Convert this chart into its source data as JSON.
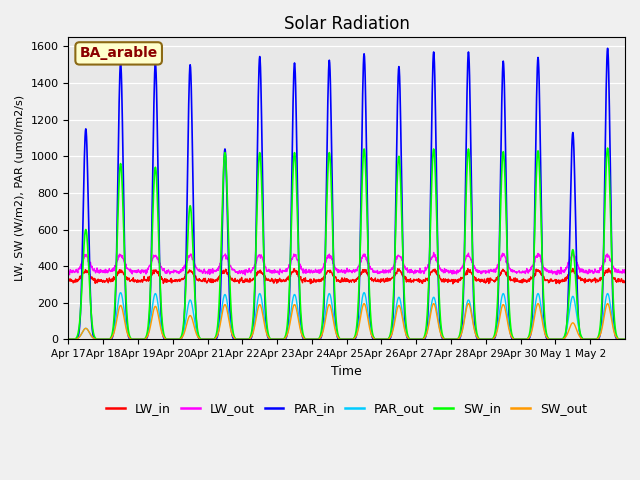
{
  "title": "Solar Radiation",
  "ylabel": "LW, SW (W/m2), PAR (umol/m2/s)",
  "xlabel": "Time",
  "annotation": "BA_arable",
  "ylim": [
    0,
    1650
  ],
  "yticks": [
    0,
    200,
    400,
    600,
    800,
    1000,
    1200,
    1400,
    1600
  ],
  "xtick_labels": [
    "Apr 17",
    "Apr 18",
    "Apr 19",
    "Apr 20",
    "Apr 21",
    "Apr 22",
    "Apr 23",
    "Apr 24",
    "Apr 25",
    "Apr 26",
    "Apr 27",
    "Apr 28",
    "Apr 29",
    "Apr 30",
    "May 1",
    "May 2"
  ],
  "xtick_positions": [
    0,
    1,
    2,
    3,
    4,
    5,
    6,
    7,
    8,
    9,
    10,
    11,
    12,
    13,
    14,
    15
  ],
  "colors": {
    "LW_in": "#ff0000",
    "LW_out": "#ff00ff",
    "PAR_in": "#0000ff",
    "PAR_out": "#00ccff",
    "SW_in": "#00ff00",
    "SW_out": "#ff9900"
  },
  "background_color": "#e8e8e8",
  "days": 16,
  "points_per_day": 96,
  "lw_in_base": 320,
  "lw_out_base": 370,
  "par_in_peaks": [
    1150,
    1510,
    1510,
    1500,
    1040,
    1545,
    1510,
    1525,
    1560,
    1490,
    1570,
    1570,
    1520,
    1540,
    1130,
    1590
  ],
  "par_out_peaks": [
    60,
    255,
    250,
    215,
    245,
    250,
    245,
    250,
    255,
    230,
    230,
    215,
    250,
    250,
    235,
    250
  ],
  "sw_in_peaks": [
    600,
    960,
    940,
    730,
    1020,
    1020,
    1020,
    1020,
    1040,
    1000,
    1040,
    1040,
    1025,
    1030,
    490,
    1045
  ],
  "sw_out_peaks": [
    60,
    185,
    180,
    130,
    190,
    190,
    190,
    190,
    195,
    185,
    195,
    195,
    190,
    195,
    90,
    195
  ]
}
